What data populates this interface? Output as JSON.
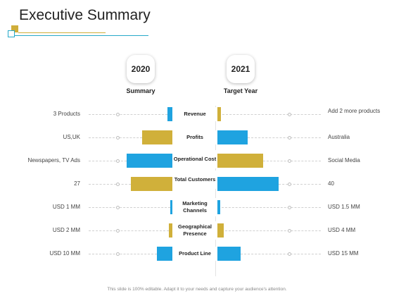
{
  "title": "Executive Summary",
  "columns": {
    "left_year": "2020",
    "left_heading": "Summary",
    "right_year": "2021",
    "right_heading": "Target Year"
  },
  "rows": [
    {
      "label": "Revenue",
      "left": "3 Products",
      "right": "Add 2 more products"
    },
    {
      "label": "Profits",
      "left": "US,UK",
      "right": "Australia"
    },
    {
      "label": "Operational Cost",
      "left": "Newspapers, TV Ads",
      "right": "Social Media"
    },
    {
      "label": "Total Customers",
      "left": "27",
      "right": "40"
    },
    {
      "label": "Marketing Channels",
      "left": "USD 1 MM",
      "right": "USD 1.5 MM"
    },
    {
      "label": "Geographical Presence",
      "left": "USD 2 MM",
      "right": "USD 4 MM"
    },
    {
      "label": "Product Line",
      "left": "USD 10 MM",
      "right": "USD 15 MM"
    }
  ],
  "colors": {
    "blue": "#1fa3e0",
    "gold": "#d0b03a",
    "teal": "#27a9c9"
  },
  "footer": "This slide is 100% editable. Adapt it to your needs and capture your audience's attention."
}
